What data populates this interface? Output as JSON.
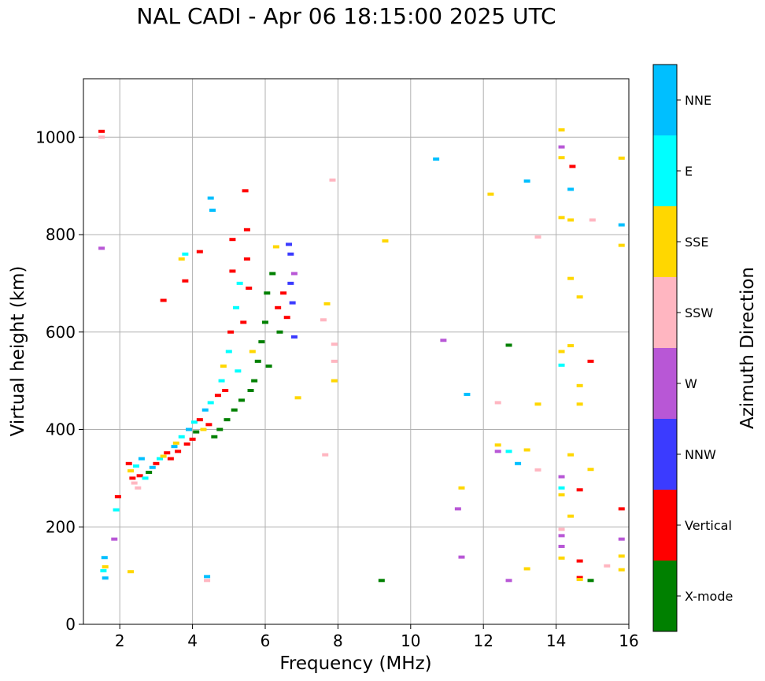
{
  "chart_data": {
    "type": "scatter",
    "title": "NAL CADI - Apr 06 18:15:00 2025 UTC",
    "xlabel": "Frequency (MHz)",
    "ylabel": "Virtual height (km)",
    "xlim": [
      1,
      16
    ],
    "ylim": [
      0,
      1120
    ],
    "xticks": [
      2,
      4,
      6,
      8,
      10,
      12,
      14,
      16
    ],
    "yticks": [
      0,
      200,
      400,
      600,
      800,
      1000
    ],
    "grid": true,
    "colorbar": {
      "label": "Azimuth Direction",
      "categories": [
        {
          "name": "X-mode",
          "color": "#008000"
        },
        {
          "name": "Vertical",
          "color": "#ff0000"
        },
        {
          "name": "NNW",
          "color": "#3b3bff"
        },
        {
          "name": "W",
          "color": "#b857d6"
        },
        {
          "name": "SSW",
          "color": "#ffb6c1"
        },
        {
          "name": "SSE",
          "color": "#ffd700"
        },
        {
          "name": "E",
          "color": "#00ffff"
        },
        {
          "name": "NNE",
          "color": "#00bfff"
        }
      ]
    },
    "echoes": [
      {
        "x": 1.5,
        "y": 1012,
        "c": 1
      },
      {
        "x": 1.5,
        "y": 1000,
        "c": 4
      },
      {
        "x": 1.5,
        "y": 772,
        "c": 3
      },
      {
        "x": 1.58,
        "y": 137,
        "c": 7
      },
      {
        "x": 1.6,
        "y": 118,
        "c": 5
      },
      {
        "x": 1.55,
        "y": 110,
        "c": 6
      },
      {
        "x": 1.6,
        "y": 95,
        "c": 7
      },
      {
        "x": 1.85,
        "y": 175,
        "c": 3
      },
      {
        "x": 1.9,
        "y": 235,
        "c": 6
      },
      {
        "x": 1.95,
        "y": 262,
        "c": 1
      },
      {
        "x": 2.3,
        "y": 108,
        "c": 5
      },
      {
        "x": 2.25,
        "y": 330,
        "c": 1
      },
      {
        "x": 2.3,
        "y": 315,
        "c": 5
      },
      {
        "x": 2.35,
        "y": 300,
        "c": 1
      },
      {
        "x": 2.4,
        "y": 290,
        "c": 4
      },
      {
        "x": 2.45,
        "y": 325,
        "c": 6
      },
      {
        "x": 2.5,
        "y": 280,
        "c": 4
      },
      {
        "x": 2.55,
        "y": 305,
        "c": 1
      },
      {
        "x": 2.6,
        "y": 340,
        "c": 7
      },
      {
        "x": 2.7,
        "y": 300,
        "c": 6
      },
      {
        "x": 2.8,
        "y": 312,
        "c": 0
      },
      {
        "x": 2.9,
        "y": 322,
        "c": 7
      },
      {
        "x": 3.0,
        "y": 330,
        "c": 1
      },
      {
        "x": 3.1,
        "y": 340,
        "c": 6
      },
      {
        "x": 3.2,
        "y": 665,
        "c": 1
      },
      {
        "x": 3.2,
        "y": 345,
        "c": 5
      },
      {
        "x": 3.3,
        "y": 352,
        "c": 1
      },
      {
        "x": 3.4,
        "y": 340,
        "c": 1
      },
      {
        "x": 3.5,
        "y": 365,
        "c": 7
      },
      {
        "x": 3.55,
        "y": 372,
        "c": 5
      },
      {
        "x": 3.6,
        "y": 355,
        "c": 1
      },
      {
        "x": 3.7,
        "y": 385,
        "c": 6
      },
      {
        "x": 3.7,
        "y": 750,
        "c": 5
      },
      {
        "x": 3.8,
        "y": 705,
        "c": 1
      },
      {
        "x": 3.8,
        "y": 760,
        "c": 6
      },
      {
        "x": 3.85,
        "y": 370,
        "c": 1
      },
      {
        "x": 3.9,
        "y": 400,
        "c": 7
      },
      {
        "x": 4.0,
        "y": 380,
        "c": 1
      },
      {
        "x": 4.05,
        "y": 415,
        "c": 6
      },
      {
        "x": 4.1,
        "y": 395,
        "c": 0
      },
      {
        "x": 4.2,
        "y": 765,
        "c": 1
      },
      {
        "x": 4.2,
        "y": 420,
        "c": 1
      },
      {
        "x": 4.3,
        "y": 400,
        "c": 5
      },
      {
        "x": 4.35,
        "y": 440,
        "c": 7
      },
      {
        "x": 4.4,
        "y": 90,
        "c": 4
      },
      {
        "x": 4.4,
        "y": 98,
        "c": 7
      },
      {
        "x": 4.45,
        "y": 410,
        "c": 1
      },
      {
        "x": 4.5,
        "y": 875,
        "c": 7
      },
      {
        "x": 4.55,
        "y": 850,
        "c": 7
      },
      {
        "x": 4.5,
        "y": 455,
        "c": 6
      },
      {
        "x": 4.6,
        "y": 385,
        "c": 0
      },
      {
        "x": 4.7,
        "y": 470,
        "c": 1
      },
      {
        "x": 4.75,
        "y": 400,
        "c": 0
      },
      {
        "x": 4.8,
        "y": 500,
        "c": 6
      },
      {
        "x": 4.85,
        "y": 530,
        "c": 5
      },
      {
        "x": 4.9,
        "y": 480,
        "c": 1
      },
      {
        "x": 4.95,
        "y": 420,
        "c": 0
      },
      {
        "x": 5.0,
        "y": 560,
        "c": 6
      },
      {
        "x": 5.05,
        "y": 600,
        "c": 1
      },
      {
        "x": 5.1,
        "y": 790,
        "c": 1
      },
      {
        "x": 5.1,
        "y": 725,
        "c": 1
      },
      {
        "x": 5.15,
        "y": 440,
        "c": 0
      },
      {
        "x": 5.2,
        "y": 650,
        "c": 6
      },
      {
        "x": 5.25,
        "y": 520,
        "c": 6
      },
      {
        "x": 5.3,
        "y": 700,
        "c": 6
      },
      {
        "x": 5.35,
        "y": 460,
        "c": 0
      },
      {
        "x": 5.4,
        "y": 620,
        "c": 1
      },
      {
        "x": 5.45,
        "y": 890,
        "c": 1
      },
      {
        "x": 5.5,
        "y": 810,
        "c": 1
      },
      {
        "x": 5.5,
        "y": 750,
        "c": 1
      },
      {
        "x": 5.55,
        "y": 690,
        "c": 1
      },
      {
        "x": 5.6,
        "y": 480,
        "c": 0
      },
      {
        "x": 5.65,
        "y": 560,
        "c": 5
      },
      {
        "x": 5.7,
        "y": 500,
        "c": 0
      },
      {
        "x": 5.8,
        "y": 540,
        "c": 0
      },
      {
        "x": 5.9,
        "y": 580,
        "c": 0
      },
      {
        "x": 6.0,
        "y": 620,
        "c": 0
      },
      {
        "x": 6.05,
        "y": 680,
        "c": 0
      },
      {
        "x": 6.1,
        "y": 530,
        "c": 0
      },
      {
        "x": 6.2,
        "y": 720,
        "c": 0
      },
      {
        "x": 6.3,
        "y": 775,
        "c": 5
      },
      {
        "x": 6.35,
        "y": 650,
        "c": 1
      },
      {
        "x": 6.4,
        "y": 600,
        "c": 0
      },
      {
        "x": 6.5,
        "y": 680,
        "c": 1
      },
      {
        "x": 6.6,
        "y": 630,
        "c": 1
      },
      {
        "x": 6.65,
        "y": 780,
        "c": 2
      },
      {
        "x": 6.7,
        "y": 760,
        "c": 2
      },
      {
        "x": 6.7,
        "y": 700,
        "c": 2
      },
      {
        "x": 6.75,
        "y": 660,
        "c": 2
      },
      {
        "x": 6.8,
        "y": 590,
        "c": 2
      },
      {
        "x": 6.8,
        "y": 720,
        "c": 3
      },
      {
        "x": 6.9,
        "y": 465,
        "c": 5
      },
      {
        "x": 7.65,
        "y": 348,
        "c": 4
      },
      {
        "x": 7.6,
        "y": 625,
        "c": 4
      },
      {
        "x": 7.7,
        "y": 658,
        "c": 5
      },
      {
        "x": 7.85,
        "y": 912,
        "c": 4
      },
      {
        "x": 7.9,
        "y": 575,
        "c": 4
      },
      {
        "x": 7.9,
        "y": 540,
        "c": 4
      },
      {
        "x": 7.9,
        "y": 500,
        "c": 5
      },
      {
        "x": 9.2,
        "y": 90,
        "c": 0
      },
      {
        "x": 9.3,
        "y": 787,
        "c": 5
      },
      {
        "x": 10.7,
        "y": 955,
        "c": 7
      },
      {
        "x": 10.9,
        "y": 583,
        "c": 3
      },
      {
        "x": 11.3,
        "y": 237,
        "c": 3
      },
      {
        "x": 11.4,
        "y": 280,
        "c": 5
      },
      {
        "x": 11.4,
        "y": 138,
        "c": 3
      },
      {
        "x": 11.55,
        "y": 472,
        "c": 7
      },
      {
        "x": 12.2,
        "y": 883,
        "c": 5
      },
      {
        "x": 12.4,
        "y": 455,
        "c": 4
      },
      {
        "x": 12.4,
        "y": 368,
        "c": 5
      },
      {
        "x": 12.4,
        "y": 355,
        "c": 3
      },
      {
        "x": 12.7,
        "y": 573,
        "c": 0
      },
      {
        "x": 12.7,
        "y": 355,
        "c": 6
      },
      {
        "x": 12.7,
        "y": 90,
        "c": 3
      },
      {
        "x": 12.95,
        "y": 330,
        "c": 7
      },
      {
        "x": 13.2,
        "y": 910,
        "c": 7
      },
      {
        "x": 13.2,
        "y": 358,
        "c": 5
      },
      {
        "x": 13.2,
        "y": 114,
        "c": 5
      },
      {
        "x": 13.5,
        "y": 795,
        "c": 4
      },
      {
        "x": 13.5,
        "y": 452,
        "c": 5
      },
      {
        "x": 13.5,
        "y": 317,
        "c": 4
      },
      {
        "x": 14.15,
        "y": 1015,
        "c": 5
      },
      {
        "x": 14.15,
        "y": 980,
        "c": 3
      },
      {
        "x": 14.15,
        "y": 958,
        "c": 5
      },
      {
        "x": 14.15,
        "y": 835,
        "c": 5
      },
      {
        "x": 14.15,
        "y": 560,
        "c": 5
      },
      {
        "x": 14.15,
        "y": 532,
        "c": 6
      },
      {
        "x": 14.15,
        "y": 303,
        "c": 3
      },
      {
        "x": 14.15,
        "y": 280,
        "c": 6
      },
      {
        "x": 14.15,
        "y": 266,
        "c": 5
      },
      {
        "x": 14.15,
        "y": 195,
        "c": 4
      },
      {
        "x": 14.15,
        "y": 182,
        "c": 3
      },
      {
        "x": 14.15,
        "y": 160,
        "c": 3
      },
      {
        "x": 14.15,
        "y": 136,
        "c": 5
      },
      {
        "x": 14.45,
        "y": 940,
        "c": 1
      },
      {
        "x": 14.4,
        "y": 893,
        "c": 7
      },
      {
        "x": 14.4,
        "y": 830,
        "c": 5
      },
      {
        "x": 14.4,
        "y": 710,
        "c": 5
      },
      {
        "x": 14.4,
        "y": 572,
        "c": 5
      },
      {
        "x": 14.4,
        "y": 348,
        "c": 5
      },
      {
        "x": 14.4,
        "y": 222,
        "c": 5
      },
      {
        "x": 14.65,
        "y": 672,
        "c": 5
      },
      {
        "x": 14.65,
        "y": 490,
        "c": 5
      },
      {
        "x": 14.65,
        "y": 452,
        "c": 5
      },
      {
        "x": 14.65,
        "y": 276,
        "c": 1
      },
      {
        "x": 14.65,
        "y": 130,
        "c": 1
      },
      {
        "x": 14.65,
        "y": 96,
        "c": 1
      },
      {
        "x": 14.65,
        "y": 92,
        "c": 5
      },
      {
        "x": 14.95,
        "y": 540,
        "c": 1
      },
      {
        "x": 14.95,
        "y": 318,
        "c": 5
      },
      {
        "x": 14.95,
        "y": 90,
        "c": 0
      },
      {
        "x": 15.0,
        "y": 830,
        "c": 4
      },
      {
        "x": 15.4,
        "y": 120,
        "c": 4
      },
      {
        "x": 15.8,
        "y": 957,
        "c": 5
      },
      {
        "x": 15.8,
        "y": 820,
        "c": 7
      },
      {
        "x": 15.8,
        "y": 778,
        "c": 5
      },
      {
        "x": 15.8,
        "y": 237,
        "c": 1
      },
      {
        "x": 15.8,
        "y": 175,
        "c": 3
      },
      {
        "x": 15.8,
        "y": 140,
        "c": 5
      },
      {
        "x": 15.8,
        "y": 112,
        "c": 5
      }
    ]
  }
}
